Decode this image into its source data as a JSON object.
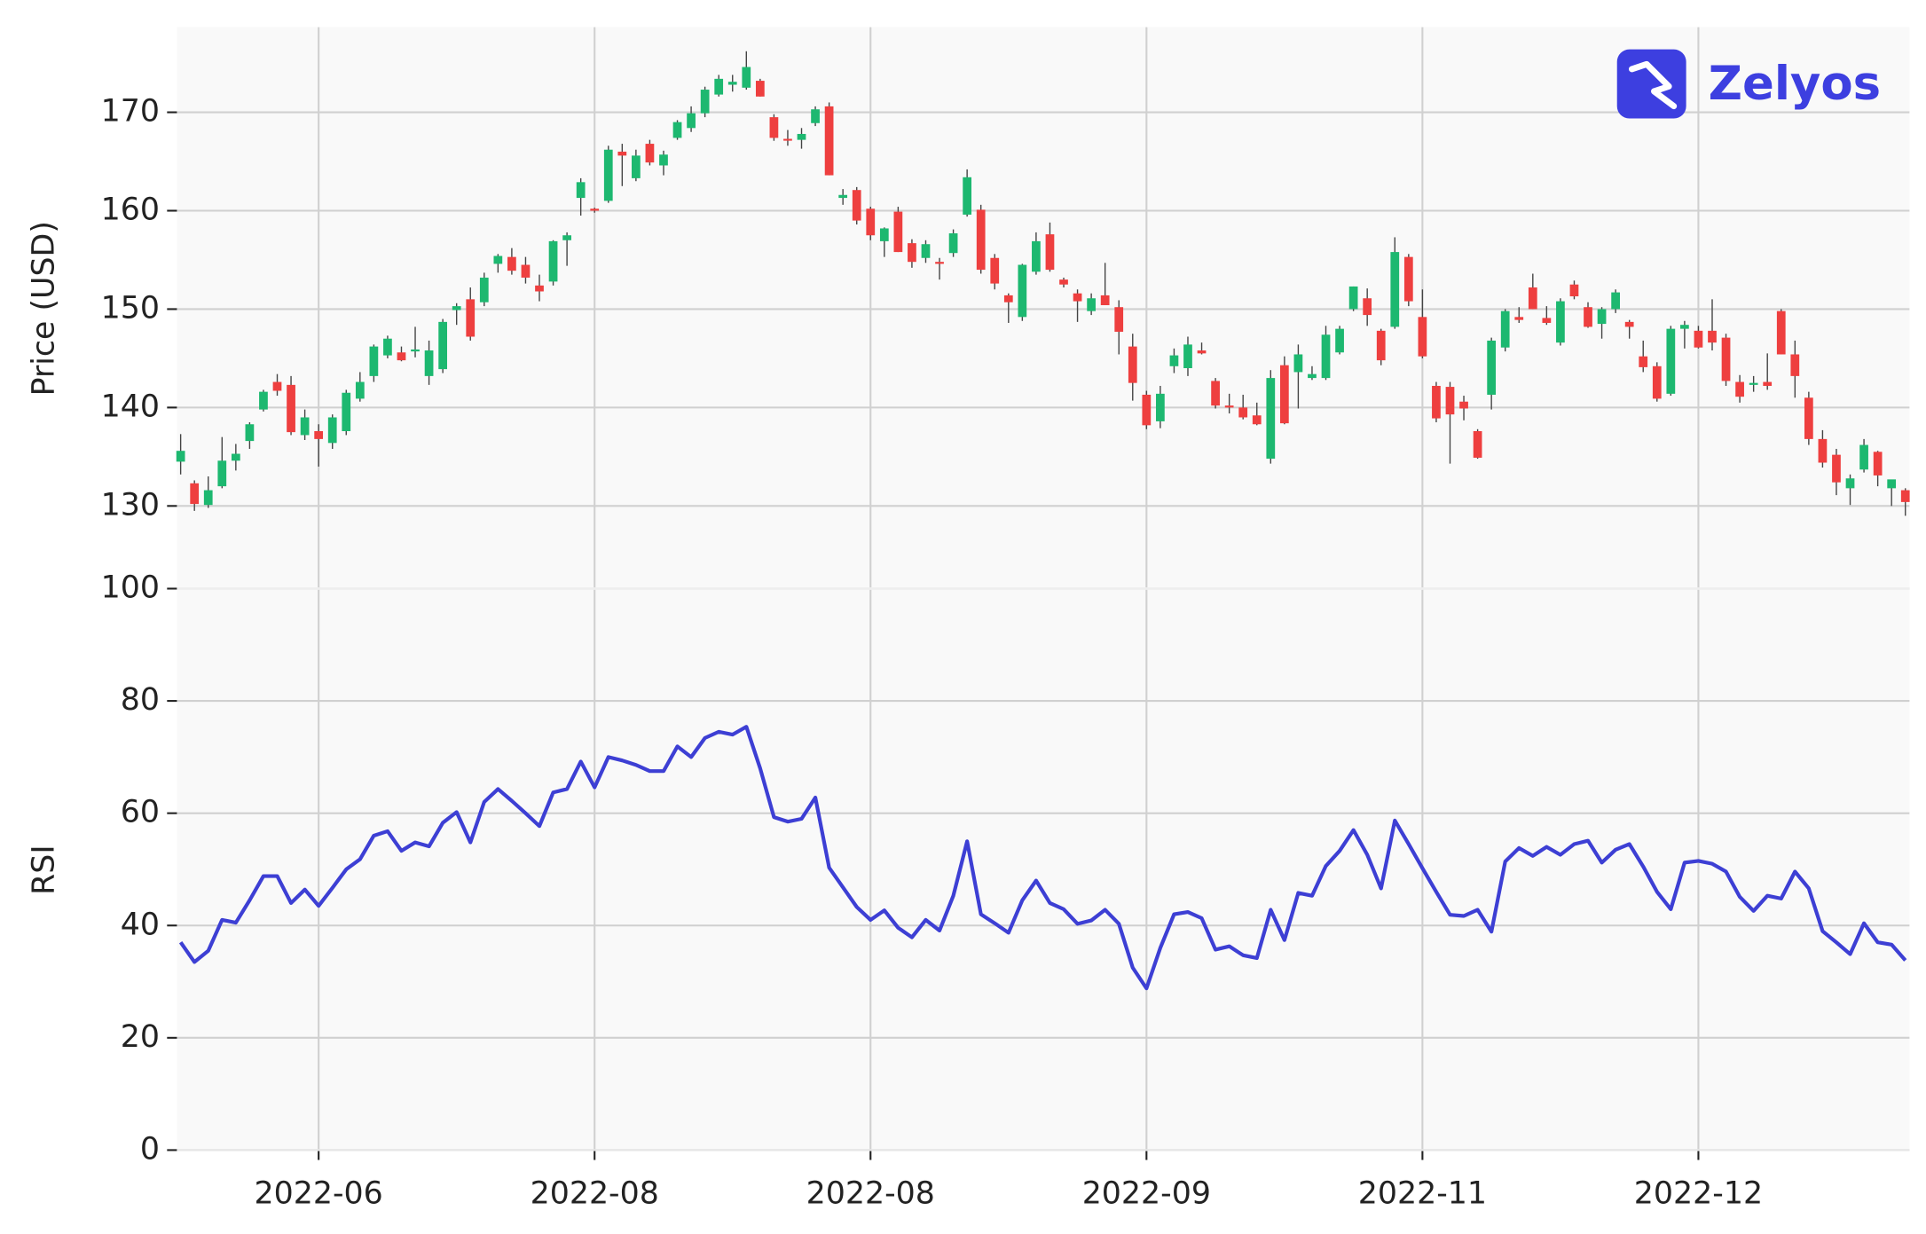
{
  "brand": "Zelyos",
  "chart_data": [
    {
      "type": "candlestick",
      "ylabel": "Price (USD)",
      "up_color": "#1db870",
      "down_color": "#ee3f3f",
      "wick_color": "#444444",
      "open": [
        134.5,
        132.3,
        130.1,
        132.0,
        134.6,
        136.6,
        139.8,
        142.6,
        142.3,
        137.2,
        137.6,
        136.4,
        137.6,
        140.9,
        143.2,
        145.3,
        145.6,
        145.7,
        143.2,
        143.9,
        149.9,
        151.0,
        150.7,
        154.6,
        155.3,
        154.5,
        152.4,
        152.8,
        157.0,
        161.3,
        160.2,
        161.0,
        166.0,
        163.3,
        166.8,
        164.6,
        167.4,
        168.4,
        169.9,
        171.8,
        172.8,
        172.5,
        173.2,
        169.5,
        167.3,
        167.2,
        168.9,
        170.6,
        161.3,
        162.1,
        160.2,
        156.9,
        159.9,
        156.7,
        155.2,
        154.8,
        155.7,
        159.6,
        160.1,
        155.2,
        151.4,
        149.2,
        153.8,
        157.6,
        153.0,
        151.6,
        149.8,
        151.4,
        150.2,
        146.2,
        141.3,
        138.6,
        144.2,
        144.0,
        145.8,
        142.7,
        140.2,
        140.0,
        139.2,
        134.8,
        144.3,
        143.6,
        143.0,
        143.0,
        145.6,
        150.0,
        151.1,
        147.8,
        148.2,
        155.3,
        149.2,
        142.2,
        142.1,
        140.6,
        137.6,
        141.3,
        146.1,
        149.2,
        152.2,
        149.1,
        146.6,
        152.5,
        150.2,
        148.5,
        150.0,
        148.7,
        145.2,
        144.2,
        141.4,
        148.0,
        147.8,
        147.8,
        147.1,
        142.6,
        142.3,
        142.6,
        149.8,
        145.4,
        141.0,
        136.8,
        135.2,
        131.8,
        133.7,
        135.5,
        131.8,
        131.6
      ],
      "high": [
        137.3,
        132.6,
        133.0,
        137.0,
        136.3,
        138.5,
        141.8,
        143.4,
        143.2,
        139.8,
        138.3,
        139.3,
        141.8,
        143.6,
        146.4,
        147.3,
        146.2,
        148.2,
        146.8,
        149.0,
        150.6,
        152.2,
        153.7,
        155.6,
        156.2,
        155.3,
        153.5,
        157.0,
        157.8,
        163.3,
        160.3,
        166.6,
        166.8,
        166.2,
        167.2,
        166.1,
        169.2,
        170.6,
        172.6,
        173.8,
        173.8,
        176.2,
        173.4,
        169.8,
        168.2,
        168.4,
        170.6,
        171.0,
        162.2,
        162.4,
        160.4,
        158.3,
        160.4,
        157.1,
        157.0,
        155.2,
        158.1,
        164.2,
        160.6,
        155.6,
        151.6,
        154.6,
        157.8,
        158.8,
        153.2,
        152.0,
        151.6,
        154.7,
        150.9,
        147.5,
        141.7,
        142.2,
        146.0,
        147.2,
        146.6,
        143.0,
        141.4,
        141.3,
        140.5,
        143.8,
        145.2,
        146.4,
        144.2,
        148.3,
        148.3,
        152.3,
        152.1,
        148.0,
        157.3,
        155.6,
        152.0,
        142.6,
        142.6,
        141.2,
        137.8,
        147.1,
        150.0,
        150.2,
        153.6,
        150.3,
        151.1,
        152.9,
        150.7,
        150.2,
        152.0,
        148.9,
        146.8,
        144.6,
        148.3,
        148.8,
        148.3,
        151.0,
        147.5,
        143.3,
        143.2,
        145.5,
        150.0,
        146.8,
        141.6,
        137.7,
        135.8,
        133.2,
        136.8,
        135.6,
        132.6,
        131.8
      ],
      "low": [
        133.2,
        129.5,
        129.8,
        131.8,
        133.6,
        135.8,
        139.6,
        141.2,
        137.2,
        136.7,
        134.0,
        135.8,
        137.2,
        140.6,
        142.6,
        145.0,
        144.7,
        145.1,
        142.3,
        143.5,
        148.4,
        146.8,
        150.3,
        153.7,
        153.5,
        152.6,
        150.8,
        152.4,
        154.4,
        159.5,
        159.8,
        160.8,
        162.5,
        163.0,
        164.6,
        163.6,
        167.2,
        168.0,
        169.5,
        171.6,
        172.1,
        172.3,
        171.6,
        167.1,
        166.6,
        166.3,
        168.6,
        163.6,
        160.6,
        158.6,
        157.0,
        155.3,
        155.8,
        154.2,
        154.7,
        153.0,
        155.3,
        159.4,
        153.6,
        152.0,
        148.6,
        148.8,
        153.5,
        153.8,
        152.2,
        148.7,
        149.4,
        150.4,
        145.4,
        140.7,
        137.8,
        137.9,
        143.5,
        143.2,
        145.4,
        139.9,
        139.4,
        138.8,
        138.2,
        134.3,
        138.3,
        139.9,
        142.8,
        142.8,
        145.4,
        149.8,
        148.3,
        144.3,
        148.0,
        150.3,
        145.0,
        138.5,
        134.3,
        138.7,
        134.8,
        139.8,
        145.7,
        148.6,
        150.0,
        148.4,
        146.3,
        151.0,
        148.1,
        147.0,
        149.6,
        147.0,
        143.6,
        140.6,
        141.2,
        146.0,
        146.0,
        145.8,
        142.2,
        140.5,
        141.6,
        141.8,
        145.4,
        141.0,
        136.2,
        133.9,
        131.1,
        130.1,
        133.4,
        132.0,
        130.0,
        129.0
      ],
      "close": [
        135.6,
        130.2,
        131.6,
        134.6,
        135.3,
        138.3,
        141.6,
        141.7,
        137.5,
        139.0,
        136.8,
        139.0,
        141.5,
        142.6,
        146.2,
        147.0,
        144.8,
        145.9,
        145.8,
        148.7,
        150.3,
        147.2,
        153.2,
        155.4,
        153.9,
        153.2,
        151.8,
        156.9,
        157.5,
        162.9,
        160.0,
        166.2,
        165.6,
        165.6,
        164.9,
        165.7,
        169.0,
        169.9,
        172.3,
        173.4,
        173.1,
        174.6,
        171.6,
        167.4,
        167.2,
        167.8,
        170.3,
        163.6,
        161.6,
        159.0,
        157.5,
        158.2,
        155.8,
        154.8,
        156.6,
        154.6,
        157.7,
        163.4,
        154.0,
        152.6,
        150.7,
        154.5,
        156.9,
        154.0,
        152.5,
        150.8,
        151.1,
        150.4,
        147.7,
        142.5,
        138.2,
        141.4,
        145.3,
        146.4,
        145.5,
        140.2,
        140.0,
        139.0,
        138.3,
        143.0,
        138.4,
        145.4,
        143.4,
        147.4,
        148.0,
        152.3,
        149.4,
        144.8,
        155.8,
        150.8,
        145.2,
        138.9,
        139.3,
        139.9,
        134.9,
        146.8,
        149.8,
        148.9,
        150.0,
        148.6,
        150.8,
        151.3,
        148.2,
        150.0,
        151.7,
        148.2,
        144.1,
        140.9,
        148.0,
        148.4,
        146.1,
        146.6,
        142.7,
        141.1,
        142.5,
        142.2,
        145.4,
        143.2,
        136.8,
        134.4,
        132.4,
        132.8,
        136.2,
        133.1,
        132.7,
        130.4
      ],
      "xlim": [
        -0.27,
        125.3
      ],
      "xticks": [
        10,
        30,
        50,
        70,
        90,
        110
      ],
      "ylim": [
        121.6,
        178.65
      ],
      "yticks": [
        130,
        140,
        150,
        160,
        170
      ],
      "grid": true
    },
    {
      "type": "line",
      "ylabel": "RSI",
      "color": "#3d3fd4",
      "values": [
        37,
        33.5,
        35.5,
        41,
        40.5,
        44.5,
        48.8,
        48.8,
        44,
        46.4,
        43.5,
        46.7,
        50,
        51.8,
        56,
        56.8,
        53.3,
        54.8,
        54.1,
        58.3,
        60.2,
        54.8,
        62,
        64.3,
        62.2,
        60,
        57.7,
        63.7,
        64.3,
        69.2,
        64.6,
        70,
        69.4,
        68.6,
        67.5,
        67.5,
        71.9,
        70,
        73.4,
        74.5,
        74,
        75.4,
        68,
        59.3,
        58.5,
        59,
        62.8,
        50.3,
        46.8,
        43.3,
        41,
        42.7,
        39.6,
        37.9,
        41,
        39.1,
        45.3,
        55,
        42,
        40.4,
        38.7,
        44.5,
        48,
        44,
        42.9,
        40.3,
        40.9,
        42.8,
        40.3,
        32.5,
        28.8,
        36,
        42,
        42.4,
        41.3,
        35.7,
        36.3,
        34.7,
        34.2,
        42.8,
        37.4,
        45.8,
        45.3,
        50.6,
        53.3,
        57,
        52.6,
        46.6,
        58.7,
        54.5,
        50.2,
        46,
        41.9,
        41.7,
        42.8,
        38.9,
        51.4,
        53.8,
        52.4,
        54,
        52.6,
        54.5,
        55.1,
        51.2,
        53.5,
        54.5,
        50.5,
        46,
        42.9,
        51.2,
        51.5,
        51,
        49.6,
        45.1,
        42.6,
        45.3,
        44.8,
        49.6,
        46.6,
        39,
        37,
        34.9,
        40.4,
        37,
        36.6,
        33.8
      ],
      "xlim": [
        -0.27,
        125.3
      ],
      "xticks": [
        {
          "value": 10,
          "label": "2022-06"
        },
        {
          "value": 30,
          "label": "2022-08"
        },
        {
          "value": 50,
          "label": "2022-08"
        },
        {
          "value": 70,
          "label": "2022-09"
        },
        {
          "value": 90,
          "label": "2022-11"
        },
        {
          "value": 110,
          "label": "2022-12"
        }
      ],
      "ylim": [
        0,
        100
      ],
      "yticks": [
        0,
        20,
        40,
        60,
        80,
        100
      ],
      "grid": true
    }
  ]
}
